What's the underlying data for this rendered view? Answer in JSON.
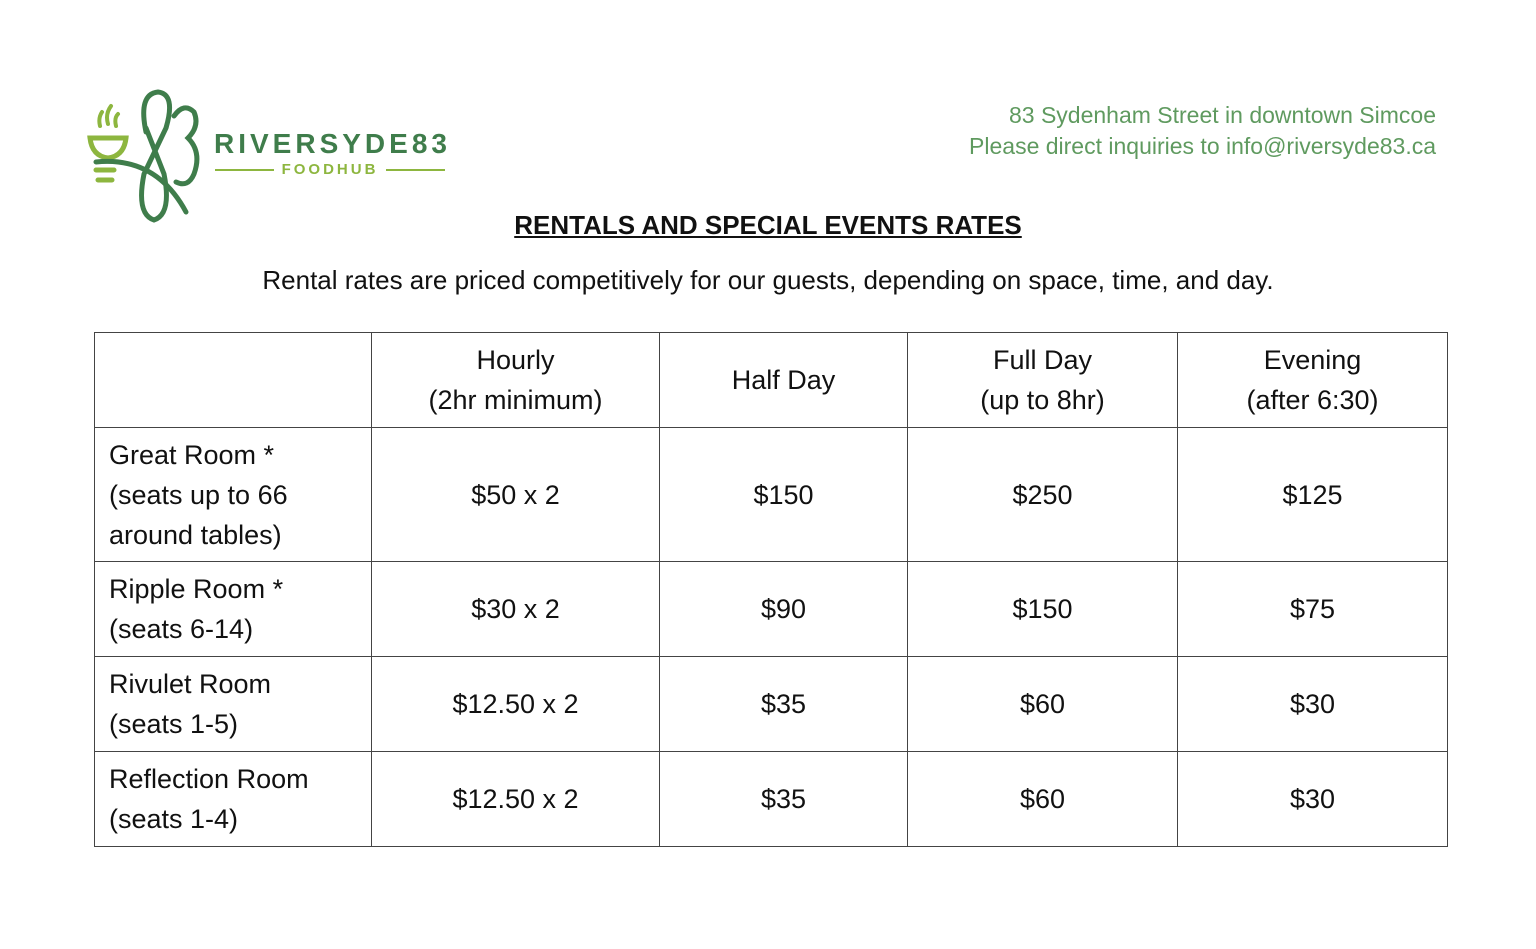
{
  "logo": {
    "brand": "RIVERSYDE83",
    "tagline": "FOODHUB",
    "colors": {
      "dark": "#3f7d4b",
      "light": "#8db63f"
    }
  },
  "address": {
    "line1": "83 Sydenham Street in downtown Simcoe",
    "line2": "Please direct inquiries to info@riversyde83.ca"
  },
  "title": "RENTALS AND SPECIAL EVENTS RATES",
  "intro": "Rental rates are priced competitively for our guests, depending on space, time, and day.",
  "table": {
    "headers": [
      {
        "l1": "",
        "l2": ""
      },
      {
        "l1": "Hourly",
        "l2": "(2hr minimum)"
      },
      {
        "l1": "Half Day",
        "l2": ""
      },
      {
        "l1": "Full Day",
        "l2": "(up to 8hr)"
      },
      {
        "l1": "Evening",
        "l2": "(after 6:30)"
      }
    ],
    "rows": [
      {
        "name": [
          "Great Room *",
          "(seats up to 66",
          "around tables)"
        ],
        "hourly": "$50 x 2",
        "half": "$150",
        "full": "$250",
        "evening": "$125"
      },
      {
        "name": [
          "Ripple Room *",
          "(seats 6-14)"
        ],
        "hourly": "$30 x 2",
        "half": "$90",
        "full": "$150",
        "evening": "$75"
      },
      {
        "name": [
          "Rivulet Room",
          "(seats 1-5)"
        ],
        "hourly": "$12.50 x 2",
        "half": "$35",
        "full": "$60",
        "evening": "$30"
      },
      {
        "name": [
          "Reflection Room",
          "(seats 1-4)"
        ],
        "hourly": "$12.50 x 2",
        "half": "$35",
        "full": "$60",
        "evening": "$30"
      }
    ]
  }
}
